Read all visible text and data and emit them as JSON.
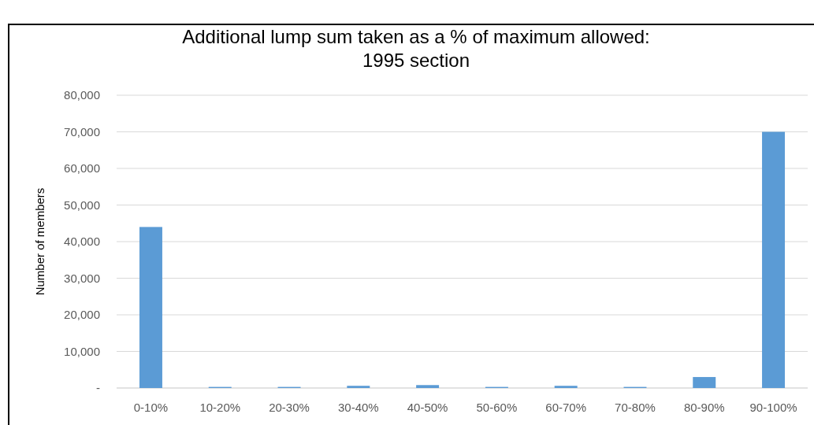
{
  "chart_data": {
    "type": "bar",
    "title": "Additional lump sum taken as a % of maximum allowed: 1995 section",
    "ylabel": "Number of members",
    "categories": [
      "0-10%",
      "10-20%",
      "20-30%",
      "30-40%",
      "40-50%",
      "50-60%",
      "60-70%",
      "70-80%",
      "80-90%",
      "90-100%"
    ],
    "values": [
      44000,
      300,
      300,
      600,
      800,
      300,
      600,
      300,
      3000,
      70000
    ],
    "color": "#5b9bd5",
    "ylim": [
      0,
      80000
    ],
    "yticks": [
      {
        "value": 0,
        "label": "-"
      },
      {
        "value": 10000,
        "label": "10,000"
      },
      {
        "value": 20000,
        "label": "20,000"
      },
      {
        "value": 30000,
        "label": "30,000"
      },
      {
        "value": 40000,
        "label": "40,000"
      },
      {
        "value": 50000,
        "label": "50,000"
      },
      {
        "value": 60000,
        "label": "60,000"
      },
      {
        "value": 70000,
        "label": "70,000"
      },
      {
        "value": 80000,
        "label": "80,000"
      }
    ],
    "grid": "y"
  }
}
